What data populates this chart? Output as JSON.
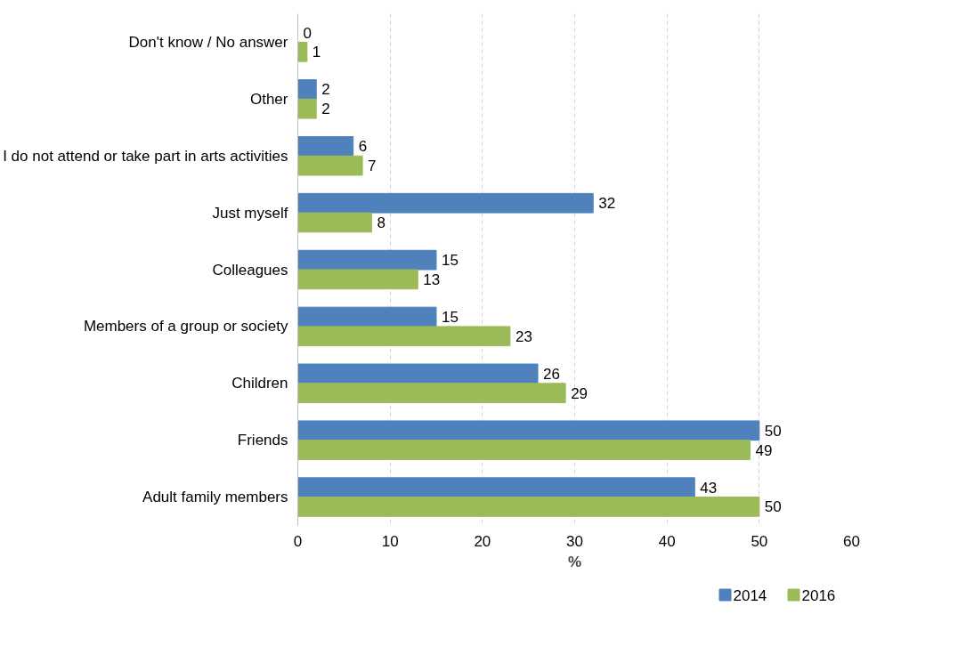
{
  "chart_data": {
    "type": "bar",
    "orientation": "horizontal",
    "xlabel": "%",
    "categories": [
      "Don't know / No answer",
      "Other",
      "I do not attend or take part in arts activities",
      "Just myself",
      "Colleagues",
      "Members of a group or society",
      "Children",
      "Friends",
      "Adult family members"
    ],
    "series": [
      {
        "name": "2014",
        "color": "#4f81bd",
        "values": [
          0,
          2,
          6,
          32,
          15,
          15,
          26,
          50,
          43
        ]
      },
      {
        "name": "2016",
        "color": "#9bbb59",
        "values": [
          1,
          2,
          7,
          8,
          13,
          23,
          29,
          49,
          50
        ]
      }
    ],
    "xlim": [
      0,
      60
    ],
    "xticks": [
      0,
      10,
      20,
      30,
      40,
      50,
      60
    ],
    "grid": "x",
    "legend": "bottom",
    "data_labels": true
  }
}
